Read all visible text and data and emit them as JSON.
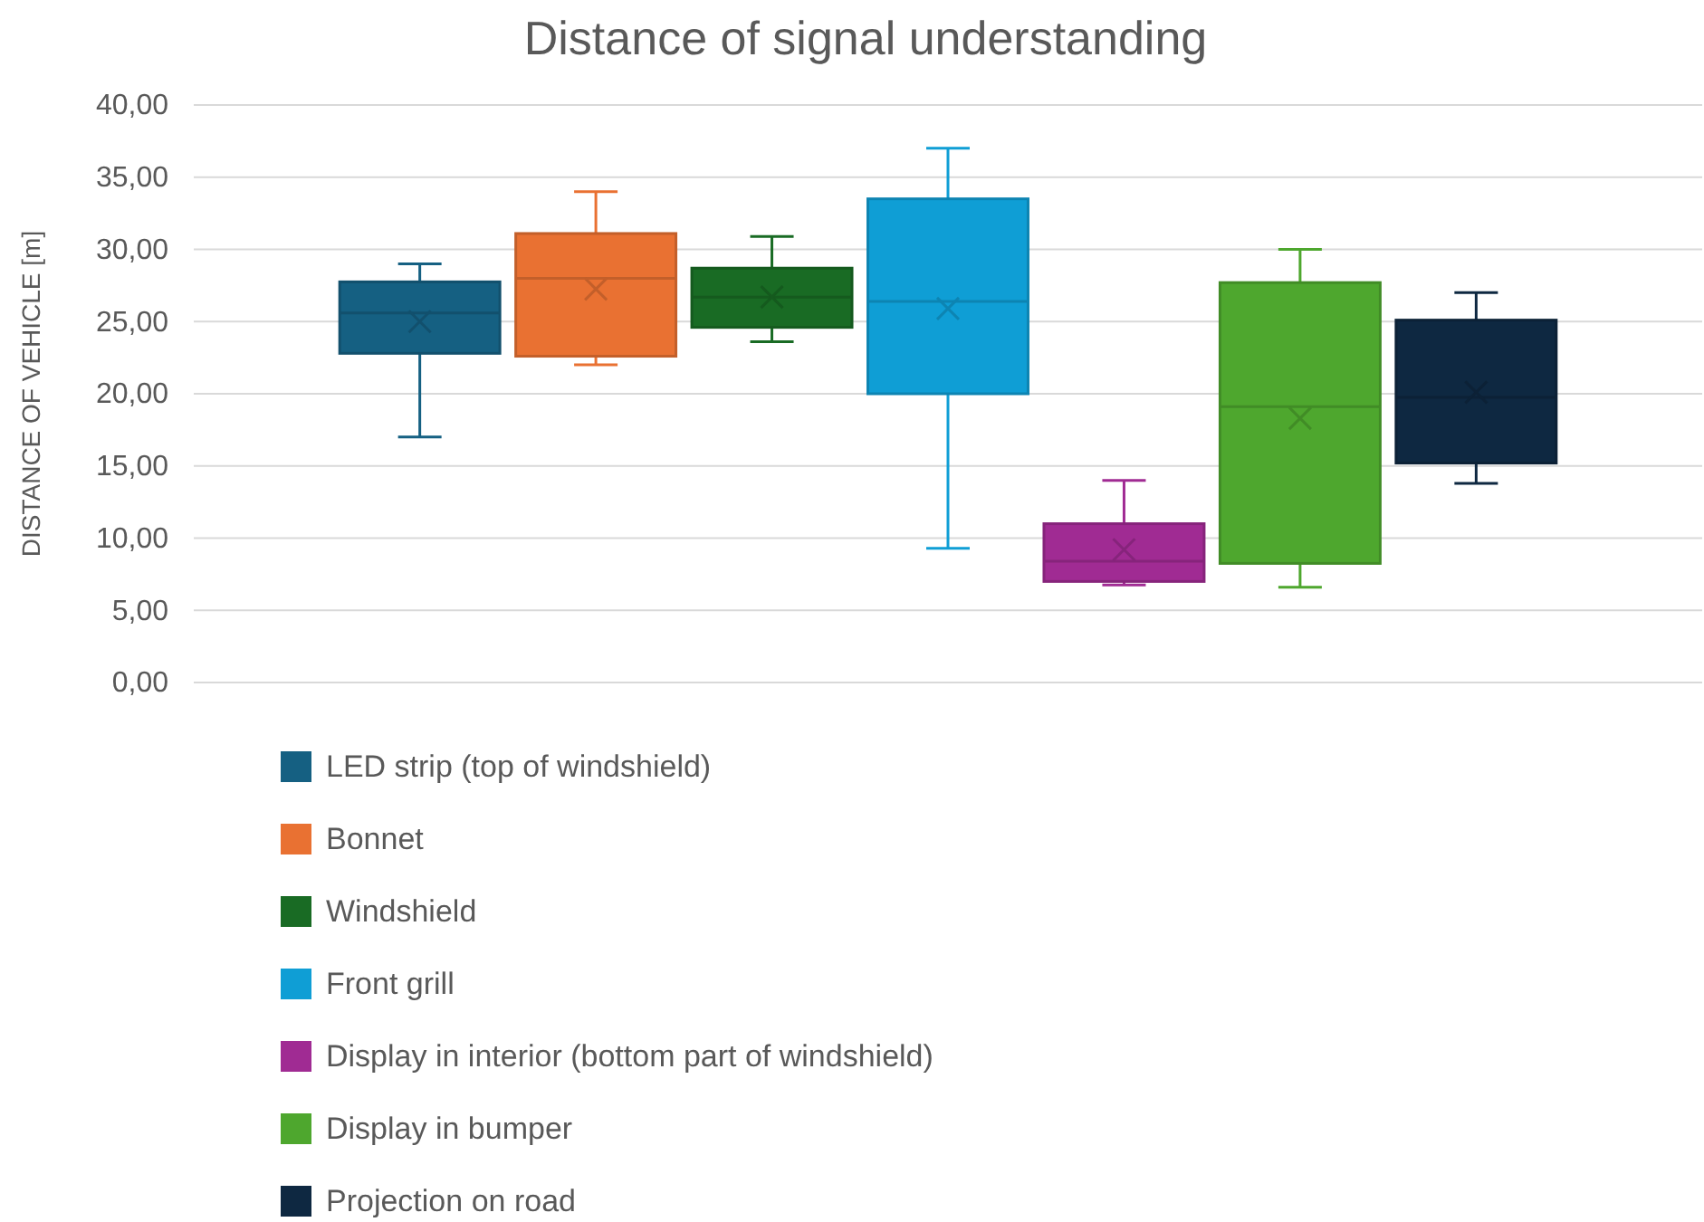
{
  "chart_data": {
    "type": "box",
    "title": "Distance of signal understanding",
    "ylabel": "DISTANCE OF VEHICLE [m]",
    "categories": [
      null
    ],
    "ylim": [
      0,
      40
    ],
    "yticks": [
      {
        "value": 0,
        "label": "0,00"
      },
      {
        "value": 5,
        "label": "5,00"
      },
      {
        "value": 10,
        "label": "10,00"
      },
      {
        "value": 15,
        "label": "15,00"
      },
      {
        "value": 20,
        "label": "20,00"
      },
      {
        "value": 25,
        "label": "25,00"
      },
      {
        "value": 30,
        "label": "30,00"
      },
      {
        "value": 35,
        "label": "35,00"
      },
      {
        "value": 40,
        "label": "40,00"
      }
    ],
    "grid": "y",
    "legend": "bottom",
    "series": [
      {
        "name": "LED strip (top of windshield)",
        "color": "#156082",
        "boxes": [
          {
            "low": 17.0,
            "q1": 22.8,
            "median": 25.6,
            "q3": 27.75,
            "high": 29.0,
            "mean": 25.0
          }
        ]
      },
      {
        "name": "Bonnet",
        "color": "#e97132",
        "boxes": [
          {
            "low": 22.0,
            "q1": 22.6,
            "median": 28.0,
            "q3": 31.1,
            "high": 34.0,
            "mean": 27.25
          }
        ]
      },
      {
        "name": "Windshield",
        "color": "#196b24",
        "boxes": [
          {
            "low": 23.6,
            "q1": 24.6,
            "median": 26.7,
            "q3": 28.7,
            "high": 30.9,
            "mean": 26.7
          }
        ]
      },
      {
        "name": "Front grill",
        "color": "#0f9ed5",
        "boxes": [
          {
            "low": 9.3,
            "q1": 20.0,
            "median": 26.4,
            "q3": 33.5,
            "high": 37.0,
            "mean": 25.9
          }
        ]
      },
      {
        "name": "Display in interior (bottom part of windshield)",
        "color": "#a02b93",
        "boxes": [
          {
            "low": 6.75,
            "q1": 7.0,
            "median": 8.4,
            "q3": 11.0,
            "high": 14.0,
            "mean": 9.2
          }
        ]
      },
      {
        "name": "Display in bumper",
        "color": "#4ea72e",
        "boxes": [
          {
            "low": 6.6,
            "q1": 8.25,
            "median": 19.1,
            "q3": 27.7,
            "high": 30.0,
            "mean": 18.3
          }
        ]
      },
      {
        "name": "Projection on road",
        "color": "#0e2841",
        "boxes": [
          {
            "low": 13.8,
            "q1": 15.2,
            "median": 19.75,
            "q3": 25.1,
            "high": 27.0,
            "mean": 20.1
          }
        ]
      }
    ]
  }
}
